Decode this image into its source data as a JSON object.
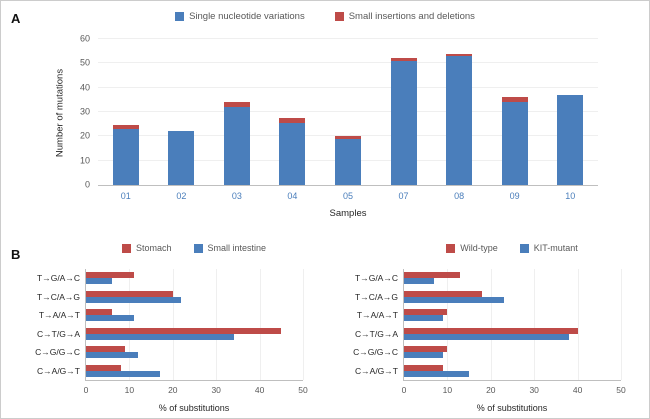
{
  "panels": {
    "a": "A",
    "b": "B"
  },
  "chart_data": [
    {
      "type": "bar",
      "stacked": true,
      "title": "",
      "categories": [
        "01",
        "02",
        "03",
        "04",
        "05",
        "07",
        "08",
        "09",
        "10"
      ],
      "series": [
        {
          "name": "Single nucleotide variations",
          "color": "#4a7ebb",
          "values": [
            23,
            22,
            32,
            25.5,
            19,
            51,
            53,
            34,
            37
          ]
        },
        {
          "name": "Small insertions and deletions",
          "color": "#be4b48",
          "values": [
            1.5,
            0,
            2,
            2,
            1,
            1,
            1,
            2,
            0
          ]
        }
      ],
      "xlabel": "Samples",
      "ylabel": "Number of mutations",
      "ylim": [
        0,
        60
      ],
      "yticks": [
        0,
        10,
        20,
        30,
        40,
        50,
        60
      ],
      "legend_position": "top",
      "grid": false
    },
    {
      "type": "bar-horizontal",
      "title": "",
      "categories": [
        "T→G/A→C",
        "T→C/A→G",
        "T→A/A→T",
        "C→T/G→A",
        "C→G/G→C",
        "C→A/G→T"
      ],
      "series": [
        {
          "name": "Stomach",
          "color": "#be4b48",
          "values": [
            11,
            20,
            6,
            45,
            9,
            8
          ]
        },
        {
          "name": "Small intestine",
          "color": "#4a7ebb",
          "values": [
            6,
            22,
            11,
            34,
            12,
            17
          ]
        }
      ],
      "xlabel": "% of substitutions",
      "xlim": [
        0,
        50
      ],
      "xticks": [
        0,
        10,
        20,
        30,
        40,
        50
      ],
      "legend_position": "top",
      "grid": false
    },
    {
      "type": "bar-horizontal",
      "title": "",
      "categories": [
        "T→G/A→C",
        "T→C/A→G",
        "T→A/A→T",
        "C→T/G→A",
        "C→G/G→C",
        "C→A/G→T"
      ],
      "series": [
        {
          "name": "Wild-type",
          "color": "#be4b48",
          "values": [
            13,
            18,
            10,
            40,
            10,
            9
          ]
        },
        {
          "name": "KIT-mutant",
          "color": "#4a7ebb",
          "values": [
            7,
            23,
            9,
            38,
            9,
            15
          ]
        }
      ],
      "xlabel": "% of substitutions",
      "xlim": [
        0,
        50
      ],
      "xticks": [
        0,
        10,
        20,
        30,
        40,
        50
      ],
      "legend_position": "top",
      "grid": false
    }
  ]
}
